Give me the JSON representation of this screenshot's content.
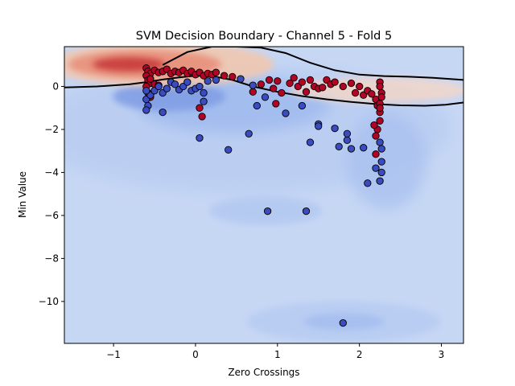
{
  "chart_data": {
    "type": "scatter",
    "title": "SVM Decision Boundary - Channel 5 - Fold 5",
    "xlabel": "Zero Crossings",
    "ylabel": "Min Value",
    "xlim": [
      -1.6,
      3.27
    ],
    "ylim": [
      -11.95,
      1.85
    ],
    "xticks": [
      -1,
      0,
      1,
      2,
      3
    ],
    "yticks": [
      0,
      -2,
      -4,
      -6,
      -8,
      -10
    ],
    "grid": false,
    "legend": "none",
    "colors": {
      "class_red": "#b40426",
      "class_blue": "#3b4cc0",
      "background": "#c6d7f4",
      "boundary": "#000000"
    },
    "decision_boundary": [
      {
        "x": [
          -1.6,
          -1.2,
          -0.8,
          -0.6,
          -0.4,
          -0.2,
          0.0,
          0.2,
          0.45,
          0.7,
          1.0,
          1.3,
          1.6,
          1.9,
          2.2,
          2.5,
          2.8,
          3.05,
          3.27
        ],
        "y": [
          -0.05,
          0.0,
          0.1,
          0.2,
          0.32,
          0.42,
          0.5,
          0.48,
          0.3,
          0.0,
          -0.25,
          -0.45,
          -0.6,
          -0.72,
          -0.82,
          -0.88,
          -0.9,
          -0.85,
          -0.75
        ]
      },
      {
        "x": [
          -0.4,
          -0.1,
          0.2,
          0.5,
          0.8,
          1.1,
          1.4,
          1.7,
          2.0,
          2.3,
          2.6,
          2.9,
          3.27
        ],
        "y": [
          1.0,
          1.6,
          1.85,
          1.85,
          1.8,
          1.55,
          1.1,
          0.75,
          0.55,
          0.48,
          0.45,
          0.4,
          0.3
        ]
      }
    ],
    "series": [
      {
        "class": "red",
        "points": [
          [
            -0.6,
            0.85
          ],
          [
            -0.58,
            0.7
          ],
          [
            -0.55,
            0.6
          ],
          [
            -0.5,
            0.75
          ],
          [
            -0.45,
            0.65
          ],
          [
            -0.4,
            0.7
          ],
          [
            -0.35,
            0.8
          ],
          [
            -0.3,
            0.6
          ],
          [
            -0.25,
            0.7
          ],
          [
            -0.2,
            0.65
          ],
          [
            -0.15,
            0.75
          ],
          [
            -0.1,
            0.6
          ],
          [
            -0.05,
            0.7
          ],
          [
            0.0,
            0.55
          ],
          [
            0.05,
            0.65
          ],
          [
            0.1,
            0.5
          ],
          [
            0.15,
            0.6
          ],
          [
            0.2,
            0.55
          ],
          [
            0.25,
            0.65
          ],
          [
            0.35,
            0.5
          ],
          [
            0.45,
            0.45
          ],
          [
            -0.6,
            0.5
          ],
          [
            -0.58,
            0.3
          ],
          [
            -0.55,
            0.15
          ],
          [
            -0.6,
            0.0
          ],
          [
            -0.58,
            -0.3
          ],
          [
            -0.55,
            -0.5
          ],
          [
            -0.5,
            0.1
          ],
          [
            -0.45,
            0.05
          ],
          [
            0.7,
            -0.25
          ],
          [
            0.8,
            0.1
          ],
          [
            0.9,
            0.3
          ],
          [
            0.95,
            -0.1
          ],
          [
            1.0,
            0.25
          ],
          [
            1.05,
            -0.3
          ],
          [
            1.15,
            0.15
          ],
          [
            1.2,
            0.4
          ],
          [
            1.25,
            0.0
          ],
          [
            1.3,
            0.2
          ],
          [
            1.35,
            -0.25
          ],
          [
            1.4,
            0.3
          ],
          [
            1.45,
            0.0
          ],
          [
            1.5,
            -0.1
          ],
          [
            1.55,
            -0.05
          ],
          [
            1.6,
            0.3
          ],
          [
            1.65,
            0.1
          ],
          [
            1.7,
            0.2
          ],
          [
            1.8,
            0.0
          ],
          [
            1.9,
            0.15
          ],
          [
            1.95,
            -0.3
          ],
          [
            2.0,
            0.0
          ],
          [
            2.05,
            -0.4
          ],
          [
            2.1,
            -0.2
          ],
          [
            2.15,
            -0.35
          ],
          [
            2.2,
            -0.6
          ],
          [
            2.22,
            -0.9
          ],
          [
            2.25,
            -1.2
          ],
          [
            2.25,
            -1.6
          ],
          [
            2.22,
            -2.0
          ],
          [
            2.2,
            -2.3
          ],
          [
            2.25,
            0.2
          ],
          [
            2.25,
            0.0
          ],
          [
            2.27,
            -0.3
          ],
          [
            2.27,
            -0.5
          ],
          [
            2.25,
            -0.8
          ],
          [
            2.25,
            -1.0
          ],
          [
            0.05,
            -1.0
          ],
          [
            0.08,
            -1.4
          ],
          [
            2.2,
            -3.15
          ],
          [
            0.98,
            -0.8
          ],
          [
            2.18,
            -1.8
          ],
          [
            -0.55,
            0.35
          ]
        ]
      },
      {
        "class": "blue",
        "points": [
          [
            -0.6,
            -0.6
          ],
          [
            -0.58,
            -0.9
          ],
          [
            -0.6,
            -1.1
          ],
          [
            -0.55,
            -0.4
          ],
          [
            -0.5,
            -0.2
          ],
          [
            -0.45,
            0.0
          ],
          [
            -0.4,
            -0.3
          ],
          [
            -0.35,
            -0.1
          ],
          [
            -0.3,
            0.2
          ],
          [
            -0.25,
            0.1
          ],
          [
            -0.2,
            -0.15
          ],
          [
            -0.15,
            0.0
          ],
          [
            -0.1,
            0.2
          ],
          [
            -0.05,
            -0.2
          ],
          [
            0.0,
            -0.1
          ],
          [
            0.05,
            0.0
          ],
          [
            0.1,
            -0.3
          ],
          [
            0.15,
            0.25
          ],
          [
            0.25,
            0.3
          ],
          [
            0.55,
            0.35
          ],
          [
            0.7,
            0.05
          ],
          [
            0.75,
            -0.9
          ],
          [
            0.85,
            -0.5
          ],
          [
            1.1,
            -1.25
          ],
          [
            1.3,
            -0.9
          ],
          [
            1.5,
            -1.75
          ],
          [
            1.5,
            -1.85
          ],
          [
            1.4,
            -2.6
          ],
          [
            1.7,
            -1.95
          ],
          [
            1.75,
            -2.8
          ],
          [
            1.85,
            -2.5
          ],
          [
            1.85,
            -2.2
          ],
          [
            1.9,
            -2.9
          ],
          [
            2.05,
            -2.85
          ],
          [
            2.1,
            -4.5
          ],
          [
            2.25,
            -4.4
          ],
          [
            2.2,
            -3.8
          ],
          [
            2.27,
            -3.5
          ],
          [
            2.27,
            -4.0
          ],
          [
            2.25,
            -2.6
          ],
          [
            0.05,
            -2.4
          ],
          [
            0.4,
            -2.95
          ],
          [
            0.88,
            -5.8
          ],
          [
            1.35,
            -5.8
          ],
          [
            1.8,
            -11.0
          ],
          [
            -0.4,
            -1.2
          ],
          [
            0.1,
            -0.7
          ],
          [
            0.65,
            -2.2
          ],
          [
            2.27,
            -2.9
          ],
          [
            -0.6,
            -0.2
          ]
        ]
      }
    ]
  }
}
